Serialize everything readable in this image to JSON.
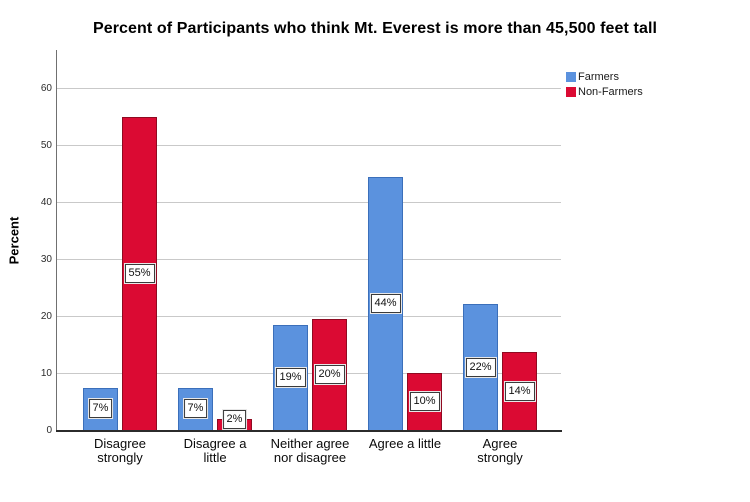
{
  "chart_data": {
    "type": "bar",
    "title": "Percent of Participants who think Mt. Everest is more than 45,500 feet tall",
    "xlabel": "",
    "ylabel": "Percent",
    "ylim": [
      0,
      60
    ],
    "yticks": [
      0,
      10,
      20,
      30,
      40,
      50,
      60
    ],
    "grid": true,
    "legend_position": "top-right",
    "categories": [
      [
        "Disagree",
        "strongly"
      ],
      [
        "Disagree a",
        "little"
      ],
      [
        "Neither agree",
        "nor disagree"
      ],
      [
        "Agree a little"
      ],
      [
        "Agree",
        "strongly"
      ]
    ],
    "series": [
      {
        "name": "Farmers",
        "color": "#5B92DE",
        "border_color": "#3B6FBA",
        "values": [
          7,
          7,
          19,
          44,
          22
        ],
        "value_labels": [
          "7%",
          "7%",
          "19%",
          "44%",
          "22%"
        ],
        "drawn_values": [
          7.4,
          7.4,
          18.4,
          44.3,
          22.1
        ]
      },
      {
        "name": "Non-Farmers",
        "color": "#DB0A33",
        "border_color": "#8F0A21",
        "values": [
          55,
          2,
          20,
          10,
          14
        ],
        "value_labels": [
          "55%",
          "2%",
          "20%",
          "10%",
          "14%"
        ],
        "drawn_values": [
          55.0,
          2.0,
          19.5,
          10.0,
          13.6
        ]
      }
    ]
  }
}
